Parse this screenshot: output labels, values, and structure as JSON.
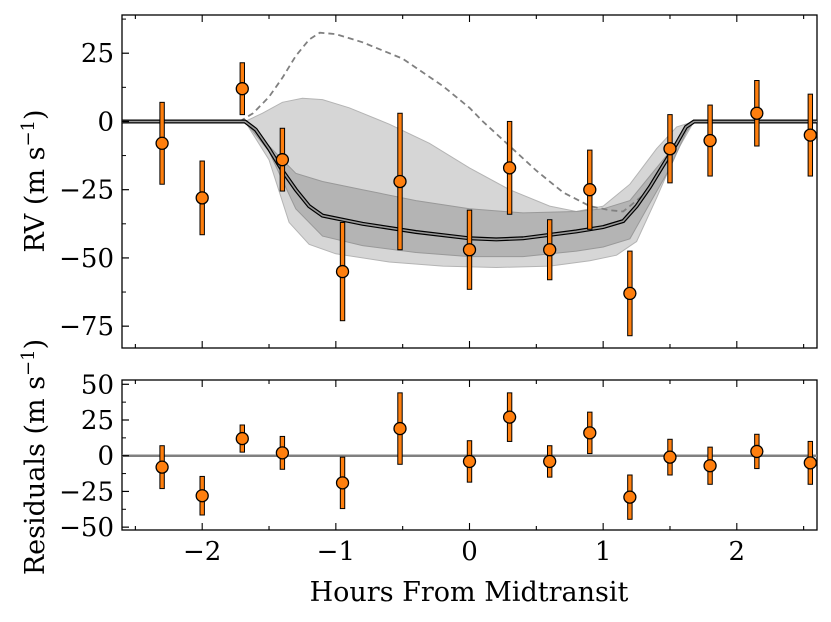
{
  "chart_data": [
    {
      "panel": "top",
      "type": "scatter",
      "ylabel": "RV (m s⁻¹)",
      "ylabel_main": "RV",
      "ylabel_unit": "(m s",
      "ylabel_exp": "−1",
      "ylabel_close": ")",
      "xlim": [
        -2.6,
        2.6
      ],
      "ylim": [
        -83,
        39
      ],
      "yticks": [
        25,
        0,
        -25,
        -50,
        -75
      ],
      "ytick_labels": [
        "25",
        "0",
        "−25",
        "−50",
        "−75"
      ],
      "colors": {
        "points": "#ff7f0e",
        "model": "#000000",
        "dashed": "#808080",
        "band_outer": "#c8c8c8",
        "band_inner": "#a5a5a5"
      },
      "points": [
        {
          "x": -2.3,
          "y": -8,
          "err": 15
        },
        {
          "x": -2.0,
          "y": -28,
          "err": 13.5
        },
        {
          "x": -1.7,
          "y": 12,
          "err": 9.5
        },
        {
          "x": -1.4,
          "y": -14,
          "err": 11.5
        },
        {
          "x": -0.95,
          "y": -55,
          "err": 18
        },
        {
          "x": -0.52,
          "y": -22,
          "err": 25
        },
        {
          "x": 0.0,
          "y": -47,
          "err": 14.5
        },
        {
          "x": 0.3,
          "y": -17,
          "err": 17
        },
        {
          "x": 0.6,
          "y": -47,
          "err": 11
        },
        {
          "x": 0.9,
          "y": -25,
          "err": 14.5
        },
        {
          "x": 1.2,
          "y": -63,
          "err": 15.5
        },
        {
          "x": 1.5,
          "y": -10,
          "err": 12.5
        },
        {
          "x": 1.8,
          "y": -7,
          "err": 13
        },
        {
          "x": 2.15,
          "y": 3,
          "err": 12
        },
        {
          "x": 2.55,
          "y": -5,
          "err": 15
        }
      ],
      "model_curve": [
        [
          -2.6,
          0
        ],
        [
          -1.68,
          0
        ],
        [
          -1.6,
          -3
        ],
        [
          -1.5,
          -10
        ],
        [
          -1.4,
          -18
        ],
        [
          -1.3,
          -25
        ],
        [
          -1.2,
          -31
        ],
        [
          -1.1,
          -34.5
        ],
        [
          -0.8,
          -37.5
        ],
        [
          -0.4,
          -40.5
        ],
        [
          0,
          -42.8
        ],
        [
          0.2,
          -43.2
        ],
        [
          0.4,
          -42.8
        ],
        [
          0.8,
          -40.3
        ],
        [
          1.0,
          -38.7
        ],
        [
          1.15,
          -36.5
        ],
        [
          1.25,
          -31
        ],
        [
          1.35,
          -24
        ],
        [
          1.45,
          -16
        ],
        [
          1.55,
          -8
        ],
        [
          1.62,
          -2
        ],
        [
          1.68,
          0
        ],
        [
          2.6,
          0
        ]
      ],
      "band_inner": {
        "upper": [
          [
            -1.68,
            0
          ],
          [
            -1.5,
            -9
          ],
          [
            -1.3,
            -19
          ],
          [
            -1.1,
            -22
          ],
          [
            -0.8,
            -25
          ],
          [
            -0.4,
            -29
          ],
          [
            0,
            -32
          ],
          [
            0.4,
            -33.5
          ],
          [
            0.8,
            -33
          ],
          [
            1.0,
            -32
          ],
          [
            1.2,
            -29
          ],
          [
            1.35,
            -20
          ],
          [
            1.5,
            -11
          ],
          [
            1.62,
            -3
          ],
          [
            1.68,
            0
          ]
        ],
        "lower": [
          [
            -1.68,
            0
          ],
          [
            -1.5,
            -11
          ],
          [
            -1.3,
            -32
          ],
          [
            -1.1,
            -42
          ],
          [
            -0.8,
            -45.5
          ],
          [
            -0.4,
            -48
          ],
          [
            0,
            -49.5
          ],
          [
            0.4,
            -49.5
          ],
          [
            0.8,
            -47.5
          ],
          [
            1.0,
            -46
          ],
          [
            1.2,
            -43
          ],
          [
            1.35,
            -30
          ],
          [
            1.5,
            -17
          ],
          [
            1.62,
            -4
          ],
          [
            1.68,
            0
          ]
        ]
      },
      "band_outer": {
        "upper": [
          [
            -1.68,
            0
          ],
          [
            -1.55,
            3
          ],
          [
            -1.4,
            7
          ],
          [
            -1.25,
            8.5
          ],
          [
            -1.1,
            8
          ],
          [
            -0.9,
            5
          ],
          [
            -0.6,
            -1
          ],
          [
            -0.3,
            -8
          ],
          [
            0,
            -17
          ],
          [
            0.3,
            -25
          ],
          [
            0.6,
            -31
          ],
          [
            0.8,
            -33
          ],
          [
            1.0,
            -31
          ],
          [
            1.2,
            -23
          ],
          [
            1.4,
            -10
          ],
          [
            1.55,
            -2
          ],
          [
            1.68,
            0
          ]
        ],
        "lower": [
          [
            -1.68,
            0
          ],
          [
            -1.5,
            -14
          ],
          [
            -1.35,
            -37
          ],
          [
            -1.2,
            -45
          ],
          [
            -1.0,
            -48.5
          ],
          [
            -0.6,
            -51.5
          ],
          [
            -0.2,
            -53
          ],
          [
            0.2,
            -53.5
          ],
          [
            0.6,
            -53
          ],
          [
            0.9,
            -51
          ],
          [
            1.1,
            -49
          ],
          [
            1.25,
            -44
          ],
          [
            1.4,
            -28
          ],
          [
            1.55,
            -11
          ],
          [
            1.68,
            0
          ]
        ]
      },
      "dashed_curve": [
        [
          -1.72,
          0
        ],
        [
          -1.62,
          3
        ],
        [
          -1.5,
          9
        ],
        [
          -1.4,
          16
        ],
        [
          -1.3,
          24
        ],
        [
          -1.2,
          30
        ],
        [
          -1.12,
          32.5
        ],
        [
          -1.0,
          32
        ],
        [
          -0.8,
          29
        ],
        [
          -0.5,
          23
        ],
        [
          -0.2,
          13
        ],
        [
          0,
          5
        ],
        [
          0.1,
          0
        ],
        [
          0.3,
          -9
        ],
        [
          0.5,
          -18
        ],
        [
          0.7,
          -26
        ],
        [
          0.9,
          -31
        ],
        [
          1.05,
          -32.5
        ],
        [
          1.15,
          -33
        ],
        [
          1.3,
          -27
        ],
        [
          1.45,
          -16
        ],
        [
          1.55,
          -8
        ],
        [
          1.62,
          -2
        ],
        [
          1.68,
          0
        ]
      ]
    },
    {
      "panel": "bottom",
      "type": "scatter",
      "xlabel": "Hours From Midtransit",
      "ylabel": "Residuals (m s⁻¹)",
      "ylabel_main": "Residuals",
      "ylabel_unit": "(m s",
      "ylabel_exp": "−1",
      "ylabel_close": ")",
      "xlim": [
        -2.6,
        2.6
      ],
      "ylim": [
        -52,
        53
      ],
      "xticks": [
        -2,
        -1,
        0,
        1,
        2
      ],
      "xtick_labels": [
        "−2",
        "−1",
        "0",
        "1",
        "2"
      ],
      "yticks": [
        50,
        25,
        0,
        -25,
        -50
      ],
      "ytick_labels": [
        "50",
        "25",
        "0",
        "−25",
        "−50"
      ],
      "colors": {
        "points": "#ff7f0e",
        "zero_line": "#808080"
      },
      "points": [
        {
          "x": -2.3,
          "y": -8,
          "err": 15
        },
        {
          "x": -2.0,
          "y": -28,
          "err": 13.5
        },
        {
          "x": -1.7,
          "y": 12,
          "err": 9.5
        },
        {
          "x": -1.4,
          "y": 2,
          "err": 11.5
        },
        {
          "x": -0.95,
          "y": -19,
          "err": 18
        },
        {
          "x": -0.52,
          "y": 19,
          "err": 25
        },
        {
          "x": 0.0,
          "y": -4,
          "err": 14.5
        },
        {
          "x": 0.3,
          "y": 27,
          "err": 17
        },
        {
          "x": 0.6,
          "y": -4,
          "err": 11
        },
        {
          "x": 0.9,
          "y": 16,
          "err": 14.5
        },
        {
          "x": 1.2,
          "y": -29,
          "err": 15.5
        },
        {
          "x": 1.5,
          "y": -1,
          "err": 12.5
        },
        {
          "x": 1.8,
          "y": -7,
          "err": 13
        },
        {
          "x": 2.15,
          "y": 3,
          "err": 12
        },
        {
          "x": 2.55,
          "y": -5,
          "err": 15
        }
      ]
    }
  ]
}
